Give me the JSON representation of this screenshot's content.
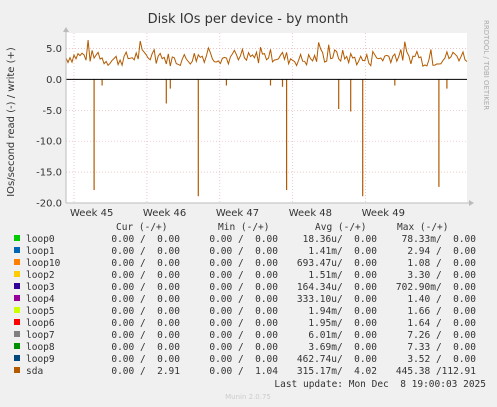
{
  "chart_data": {
    "type": "line",
    "title": "Disk IOs per device - by month",
    "ylabel": "IOs/second read (-) / write (+)",
    "side_label": "RRDTOOL / TOBI OETIKER",
    "ylim": [
      -20,
      7.5
    ],
    "yticks": [
      5.0,
      0.0,
      -5.0,
      -10.0,
      -15.0,
      -20.0
    ],
    "ytick_labels": [
      "5.0",
      "0.0",
      "-5.0",
      "-10.0",
      "-15.0",
      "-20.0"
    ],
    "x_categories": [
      "Week 45",
      "Week 46",
      "Week 47",
      "Week 48",
      "Week 49"
    ],
    "grid": true,
    "series": [
      {
        "name": "loop0",
        "color": "#00cc00"
      },
      {
        "name": "loop1",
        "color": "#0066b3"
      },
      {
        "name": "loop10",
        "color": "#ff8000"
      },
      {
        "name": "loop2",
        "color": "#ffcc00"
      },
      {
        "name": "loop3",
        "color": "#330099"
      },
      {
        "name": "loop4",
        "color": "#990099"
      },
      {
        "name": "loop5",
        "color": "#ccff00"
      },
      {
        "name": "loop6",
        "color": "#ff0000"
      },
      {
        "name": "loop7",
        "color": "#808080"
      },
      {
        "name": "loop8",
        "color": "#008f00"
      },
      {
        "name": "loop9",
        "color": "#00487d"
      },
      {
        "name": "sda",
        "color": "#b35a00"
      }
    ],
    "sda_write_baseline": 3.5,
    "sda_read_spikes": [
      {
        "x": 0.07,
        "value": -17.9
      },
      {
        "x": 0.09,
        "value": -1.0
      },
      {
        "x": 0.25,
        "value": -3.9
      },
      {
        "x": 0.26,
        "value": -1.5
      },
      {
        "x": 0.33,
        "value": -18.9
      },
      {
        "x": 0.4,
        "value": -1.0
      },
      {
        "x": 0.51,
        "value": -1.0
      },
      {
        "x": 0.54,
        "value": -1.2
      },
      {
        "x": 0.55,
        "value": -17.9
      },
      {
        "x": 0.68,
        "value": -4.8
      },
      {
        "x": 0.71,
        "value": -5.2
      },
      {
        "x": 0.74,
        "value": -18.9
      },
      {
        "x": 0.82,
        "value": -1.0
      },
      {
        "x": 0.93,
        "value": -17.4
      },
      {
        "x": 0.95,
        "value": -1.5
      }
    ]
  },
  "legend": {
    "headers": {
      "cur": "Cur (-/+)",
      "min": "Min (-/+)",
      "avg": "Avg (-/+)",
      "max": "Max (-/+)"
    },
    "rows": [
      {
        "name": "loop0",
        "cur": "0.00 /  0.00",
        "min": "0.00 /  0.00",
        "avg": "18.36u/  0.00",
        "max": "78.33m/  0.00"
      },
      {
        "name": "loop1",
        "cur": "0.00 /  0.00",
        "min": "0.00 /  0.00",
        "avg": "1.41m/  0.00",
        "max": "2.94 /  0.00"
      },
      {
        "name": "loop10",
        "cur": "0.00 /  0.00",
        "min": "0.00 /  0.00",
        "avg": "693.47u/  0.00",
        "max": "1.08 /  0.00"
      },
      {
        "name": "loop2",
        "cur": "0.00 /  0.00",
        "min": "0.00 /  0.00",
        "avg": "1.51m/  0.00",
        "max": "3.30 /  0.00"
      },
      {
        "name": "loop3",
        "cur": "0.00 /  0.00",
        "min": "0.00 /  0.00",
        "avg": "164.34u/  0.00",
        "max": "702.90m/  0.00"
      },
      {
        "name": "loop4",
        "cur": "0.00 /  0.00",
        "min": "0.00 /  0.00",
        "avg": "333.10u/  0.00",
        "max": "1.40 /  0.00"
      },
      {
        "name": "loop5",
        "cur": "0.00 /  0.00",
        "min": "0.00 /  0.00",
        "avg": "1.94m/  0.00",
        "max": "1.66 /  0.00"
      },
      {
        "name": "loop6",
        "cur": "0.00 /  0.00",
        "min": "0.00 /  0.00",
        "avg": "1.95m/  0.00",
        "max": "1.64 /  0.00"
      },
      {
        "name": "loop7",
        "cur": "0.00 /  0.00",
        "min": "0.00 /  0.00",
        "avg": "6.01m/  0.00",
        "max": "7.26 /  0.00"
      },
      {
        "name": "loop8",
        "cur": "0.00 /  0.00",
        "min": "0.00 /  0.00",
        "avg": "3.69m/  0.00",
        "max": "7.33 /  0.00"
      },
      {
        "name": "loop9",
        "cur": "0.00 /  0.00",
        "min": "0.00 /  0.00",
        "avg": "462.74u/  0.00",
        "max": "3.52 /  0.00"
      },
      {
        "name": "sda",
        "cur": "0.00 /  2.91",
        "min": "0.00 /  1.04",
        "avg": "315.17m/  4.02",
        "max": "445.38 /112.91"
      }
    ]
  },
  "last_update": "Last update: Mon Dec  8 19:00:03 2025",
  "footer": "Munin 2.0.75"
}
